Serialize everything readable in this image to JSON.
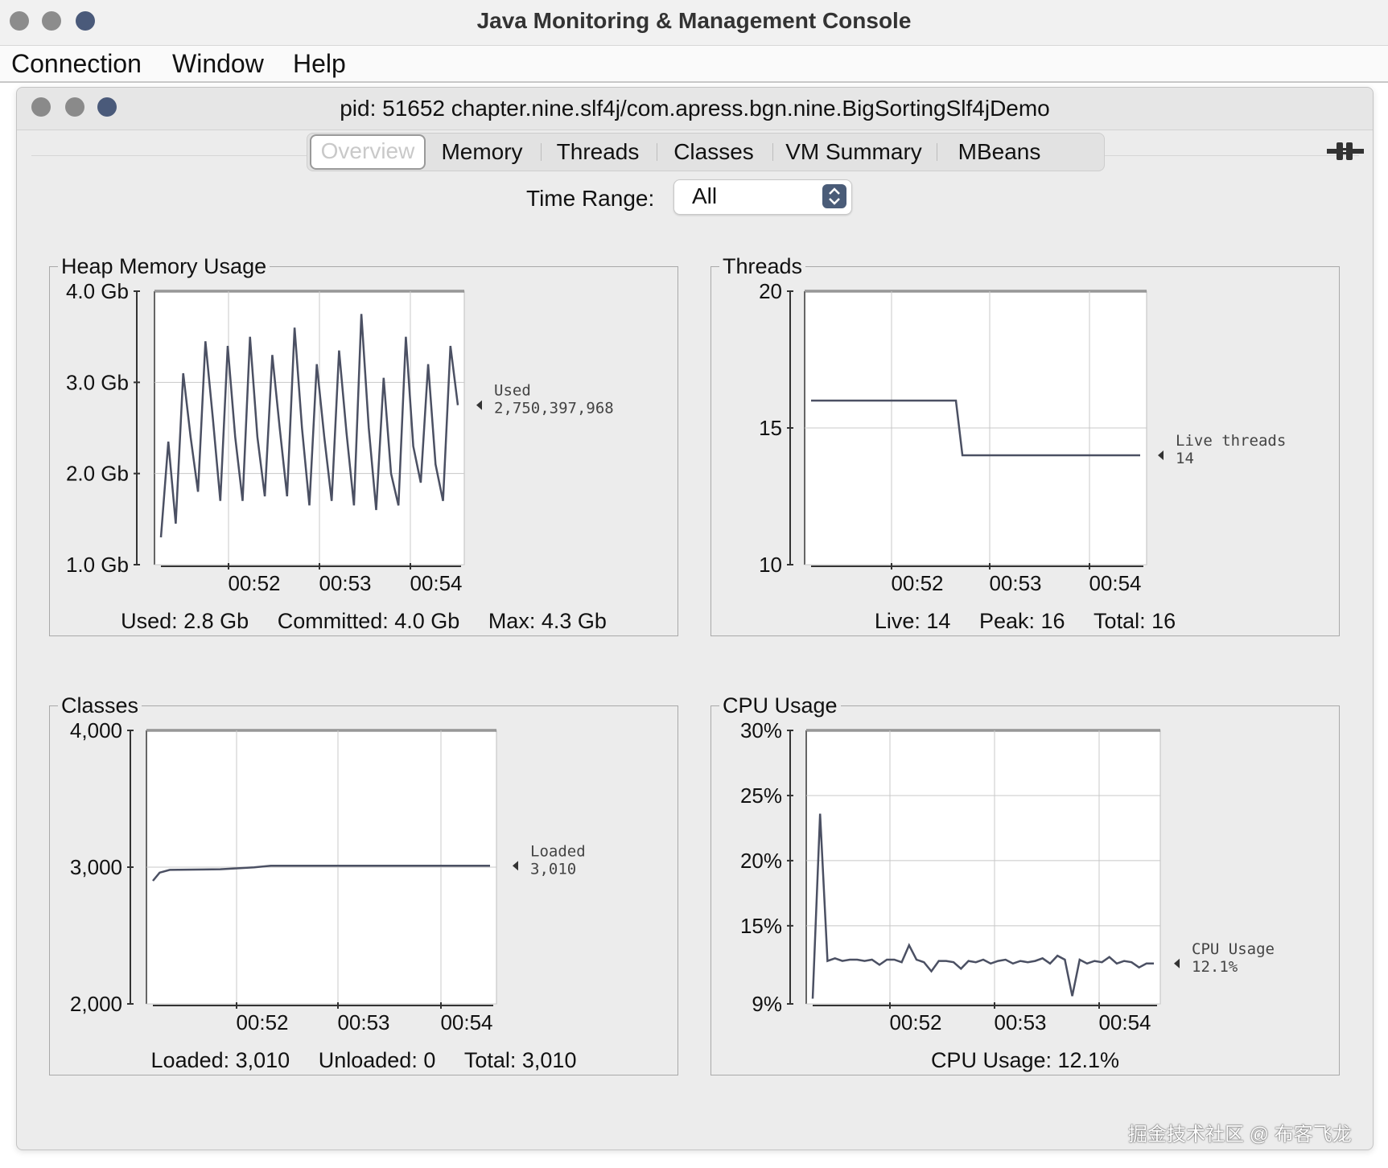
{
  "window": {
    "title": "Java Monitoring & Management Console",
    "menu": [
      "Connection",
      "Window",
      "Help"
    ]
  },
  "inner": {
    "title": "pid: 51652 chapter.nine.slf4j/com.apress.bgn.nine.BigSortingSlf4jDemo",
    "tabs": [
      "Overview",
      "Memory",
      "Threads",
      "Classes",
      "VM Summary",
      "MBeans"
    ],
    "active_tab": "Overview",
    "time_range_label": "Time Range:",
    "time_range_value": "All"
  },
  "chart_data": [
    {
      "type": "line",
      "title": "Heap Memory Usage",
      "x_ticks": [
        "00:52",
        "00:53",
        "00:54"
      ],
      "y_ticks": [
        "1.0 Gb",
        "2.0 Gb",
        "3.0 Gb",
        "4.0 Gb"
      ],
      "ylim": [
        1.0,
        4.0
      ],
      "series": [
        {
          "name": "Used",
          "values": [
            1.3,
            2.35,
            1.45,
            3.1,
            2.4,
            1.8,
            3.45,
            2.6,
            1.7,
            3.4,
            2.4,
            1.7,
            3.5,
            2.4,
            1.75,
            3.3,
            2.5,
            1.75,
            3.6,
            2.5,
            1.65,
            3.2,
            2.4,
            1.7,
            3.35,
            2.45,
            1.65,
            3.75,
            2.5,
            1.6,
            3.05,
            2.0,
            1.65,
            3.5,
            2.3,
            1.9,
            3.2,
            2.1,
            1.7,
            3.4,
            2.75
          ]
        }
      ],
      "legend_label": "Used",
      "legend_value": "2,750,397,968",
      "footer": [
        "Used: 2.8 Gb",
        "Committed: 4.0 Gb",
        "Max: 4.3 Gb"
      ]
    },
    {
      "type": "line",
      "title": "Threads",
      "x_ticks": [
        "00:52",
        "00:53",
        "00:54"
      ],
      "y_ticks": [
        "10",
        "15",
        "20"
      ],
      "ylim": [
        10,
        20
      ],
      "series": [
        {
          "name": "Live threads",
          "x": [
            0.0,
            0.44,
            0.46,
            1.0
          ],
          "values": [
            16,
            16,
            14,
            14
          ]
        }
      ],
      "legend_label": "Live threads",
      "legend_value": "14",
      "footer": [
        "Live: 14",
        "Peak: 16",
        "Total: 16"
      ]
    },
    {
      "type": "line",
      "title": "Classes",
      "x_ticks": [
        "00:52",
        "00:53",
        "00:54"
      ],
      "y_ticks": [
        "2,000",
        "3,000",
        "4,000"
      ],
      "ylim": [
        2000,
        4000
      ],
      "series": [
        {
          "name": "Loaded",
          "x": [
            0.0,
            0.02,
            0.05,
            0.2,
            0.3,
            0.35,
            1.0
          ],
          "values": [
            2900,
            2960,
            2980,
            2985,
            2998,
            3010,
            3010
          ]
        }
      ],
      "legend_label": "Loaded",
      "legend_value": "3,010",
      "footer": [
        "Loaded: 3,010",
        "Unloaded: 0",
        "Total: 3,010"
      ]
    },
    {
      "type": "line",
      "title": "CPU Usage",
      "x_ticks": [
        "00:52",
        "00:53",
        "00:54"
      ],
      "y_ticks": [
        "9%",
        "15%",
        "20%",
        "25%",
        "30%"
      ],
      "y_tick_values": [
        9,
        15,
        20,
        25,
        30
      ],
      "ylim": [
        9,
        30
      ],
      "series": [
        {
          "name": "CPU Usage",
          "values": [
            9.4,
            23.6,
            12.3,
            12.5,
            12.3,
            12.4,
            12.4,
            12.3,
            12.4,
            12.0,
            12.4,
            12.4,
            12.2,
            13.5,
            12.4,
            12.2,
            11.5,
            12.3,
            12.3,
            12.2,
            11.7,
            12.3,
            12.2,
            12.4,
            12.1,
            12.3,
            12.4,
            12.1,
            12.3,
            12.2,
            12.3,
            12.5,
            12.1,
            12.7,
            12.4,
            9.6,
            12.4,
            12.1,
            12.3,
            12.2,
            12.6,
            12.1,
            12.3,
            12.2,
            11.8,
            12.1,
            12.1
          ]
        }
      ],
      "legend_label": "CPU Usage",
      "legend_value": "12.1%",
      "footer": [
        "CPU Usage: 12.1%"
      ]
    }
  ],
  "watermark": "掘金技术社区 @ 布客飞龙",
  "colors": {
    "line": "#4b5063",
    "grid": "#c8c8c8",
    "plot_bg": "#ffffff",
    "traffic_gray": "#8a8a8a",
    "traffic_blue": "#4a5a7a"
  }
}
